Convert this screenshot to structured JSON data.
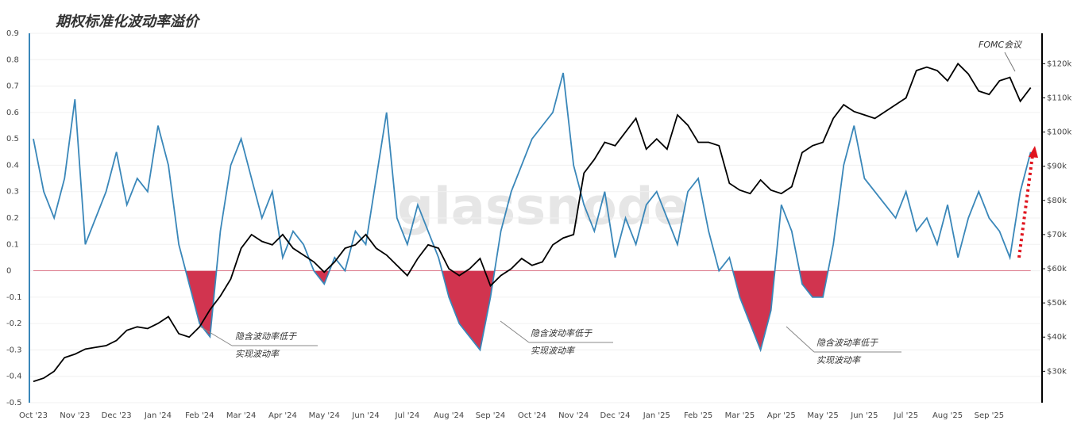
{
  "chart_data": {
    "type": "line",
    "title": "期权标准化波动率溢价",
    "watermark": "glassnode",
    "annotations": [
      "隐含波动率低于",
      "实现波动率",
      "隐含波动率低于",
      "实现波动率",
      "隐含波动率低于",
      "实现波动率",
      "FOMC会议"
    ],
    "categories": [
      "Oct '23",
      null,
      null,
      null,
      "Nov '23",
      null,
      null,
      null,
      "Dec '23",
      null,
      null,
      null,
      "Jan '24",
      null,
      null,
      null,
      "Feb '24",
      null,
      null,
      null,
      "Mar '24",
      null,
      null,
      null,
      "Apr '24",
      null,
      null,
      null,
      "May '24",
      null,
      null,
      null,
      "Jun '24",
      null,
      null,
      null,
      "Jul '24",
      null,
      null,
      null,
      "Aug '24",
      null,
      null,
      null,
      "Sep '24",
      null,
      null,
      null,
      "Oct '24",
      null,
      null,
      null,
      "Nov '24",
      null,
      null,
      null,
      "Dec '24",
      null,
      null,
      null,
      "Jan '25",
      null,
      null,
      null,
      "Feb '25",
      null,
      null,
      null,
      "Mar '25",
      null,
      null,
      null,
      "Apr '25",
      null,
      null,
      null,
      "May '25",
      null,
      null,
      null,
      "Jun '25",
      null,
      null,
      null,
      "Jul '25",
      null,
      null,
      null,
      "Aug '25",
      null,
      null,
      null,
      "Sep '25",
      null,
      null,
      null,
      null
    ],
    "series": [
      {
        "color": "#3a87b9",
        "negative_fill": "#d1344f",
        "values": [
          0.5,
          0.3,
          0.2,
          0.35,
          0.65,
          0.1,
          0.2,
          0.3,
          0.45,
          0.25,
          0.35,
          0.3,
          0.55,
          0.4,
          0.1,
          -0.05,
          -0.2,
          -0.25,
          0.15,
          0.4,
          0.5,
          0.35,
          0.2,
          0.3,
          0.05,
          0.15,
          0.1,
          0.0,
          -0.05,
          0.05,
          0.0,
          0.15,
          0.1,
          0.35,
          0.6,
          0.2,
          0.1,
          0.25,
          0.15,
          0.05,
          -0.1,
          -0.2,
          -0.25,
          -0.3,
          -0.1,
          0.15,
          0.3,
          0.4,
          0.5,
          0.55,
          0.6,
          0.75,
          0.4,
          0.25,
          0.15,
          0.3,
          0.05,
          0.2,
          0.1,
          0.25,
          0.3,
          0.2,
          0.1,
          0.3,
          0.35,
          0.15,
          0.0,
          0.05,
          -0.1,
          -0.2,
          -0.3,
          -0.15,
          0.25,
          0.15,
          -0.05,
          -0.1,
          -0.1,
          0.1,
          0.4,
          0.55,
          0.35,
          0.3,
          0.25,
          0.2,
          0.3,
          0.15,
          0.2,
          0.1,
          0.25,
          0.05,
          0.2,
          0.3,
          0.2,
          0.15,
          0.05,
          0.3,
          0.45
        ]
      },
      {
        "color": "#000000",
        "axis": "y2",
        "values": [
          27000,
          28000,
          30000,
          34000,
          35000,
          36500,
          37000,
          37500,
          39000,
          42000,
          43000,
          42500,
          44000,
          46000,
          41000,
          40000,
          43000,
          48000,
          52000,
          57000,
          66000,
          70000,
          68000,
          67000,
          70000,
          66000,
          64000,
          62000,
          59000,
          62000,
          66000,
          67000,
          70000,
          66000,
          64000,
          61000,
          58000,
          63000,
          67000,
          66000,
          60000,
          58000,
          60000,
          63000,
          55000,
          58000,
          60000,
          63000,
          61000,
          62000,
          67000,
          69000,
          70000,
          88000,
          92000,
          97000,
          96000,
          100000,
          104000,
          95000,
          98000,
          95000,
          105000,
          102000,
          97000,
          97000,
          96000,
          85000,
          83000,
          82000,
          86000,
          83000,
          82000,
          84000,
          94000,
          96000,
          97000,
          104000,
          108000,
          106000,
          105000,
          104000,
          106000,
          108000,
          110000,
          118000,
          119000,
          118000,
          115000,
          120000,
          117000,
          112000,
          111000,
          115000,
          116000,
          109000,
          113000
        ]
      }
    ],
    "ylim": [
      -0.5,
      0.9
    ],
    "yticks": [
      -0.5,
      -0.4,
      -0.3,
      -0.2,
      -0.1,
      0,
      0.1,
      0.2,
      0.3,
      0.4,
      0.5,
      0.6,
      0.7,
      0.8,
      0.9
    ],
    "y2lim": [
      20800,
      128900
    ],
    "y2ticks": [
      {
        "value": 30000,
        "label": "$30k"
      },
      {
        "value": 40000,
        "label": "$40k"
      },
      {
        "value": 50000,
        "label": "$50k"
      },
      {
        "value": 60000,
        "label": "$60k"
      },
      {
        "value": 70000,
        "label": "$70k"
      },
      {
        "value": 80000,
        "label": "$80k"
      },
      {
        "value": 90000,
        "label": "$90k"
      },
      {
        "value": 100000,
        "label": "$100k"
      },
      {
        "value": 110000,
        "label": "$110k"
      },
      {
        "value": 120000,
        "label": "$120k"
      }
    ],
    "grid": true
  }
}
